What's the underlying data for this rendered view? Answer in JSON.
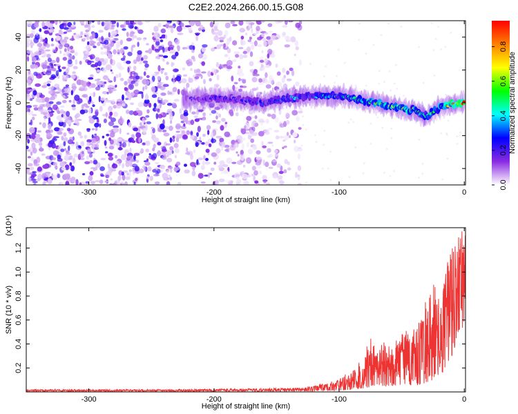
{
  "chart_data": [
    {
      "type": "heatmap",
      "title": "C2E2.2024.266.00.15.G08",
      "xlabel": "Height of straight line (km)",
      "ylabel": "Frequency (Hz)",
      "xlim": [
        -350,
        1
      ],
      "ylim": [
        -50,
        50
      ],
      "xticks": [
        -300,
        -200,
        -100,
        0
      ],
      "yticks": [
        -40,
        -20,
        0,
        20,
        40
      ],
      "colorbar": {
        "label": "Normalized spectral amplitude",
        "range": [
          0,
          0.95
        ],
        "ticks": [
          0.0,
          0.2,
          0.4,
          0.6,
          0.8
        ],
        "colormap": [
          "#ffffff",
          "#8a2be2",
          "#0000ff",
          "#00ffff",
          "#00ff00",
          "#ffff00",
          "#ff8000",
          "#ff0000"
        ]
      },
      "ridge": {
        "x": [
          -220,
          -200,
          -180,
          -160,
          -140,
          -120,
          -100,
          -90,
          -80,
          -70,
          -60,
          -50,
          -45,
          -40,
          -35,
          -30,
          -20,
          -10,
          0
        ],
        "y": [
          2,
          3,
          2,
          0,
          3,
          4,
          4,
          3,
          1,
          0,
          -2,
          -3,
          -5,
          -4,
          -7,
          -8,
          -3,
          -1,
          0
        ],
        "amplitude": [
          0.2,
          0.25,
          0.25,
          0.3,
          0.35,
          0.4,
          0.45,
          0.5,
          0.55,
          0.6,
          0.6,
          0.55,
          0.65,
          0.6,
          0.5,
          0.5,
          0.6,
          0.8,
          0.9
        ]
      }
    },
    {
      "type": "line",
      "xlabel": "Height of straight line (km)",
      "ylabel": "SNR (10 * v/v)",
      "y_multiplier": "(x10⁴)",
      "xlim": [
        -350,
        1
      ],
      "ylim": [
        0,
        1.37
      ],
      "xticks": [
        -300,
        -200,
        -100,
        0
      ],
      "yticks": [
        0.2,
        0.4,
        0.6,
        0.8,
        1.0,
        1.2
      ],
      "color": "#ee3333",
      "envelope": {
        "x": [
          -350,
          -300,
          -250,
          -200,
          -150,
          -130,
          -120,
          -110,
          -100,
          -90,
          -80,
          -75,
          -70,
          -65,
          -60,
          -55,
          -50,
          -45,
          -40,
          -35,
          -30,
          -25,
          -20,
          -15,
          -10,
          -5,
          -2,
          0
        ],
        "low": [
          0.005,
          0.005,
          0.005,
          0.005,
          0.005,
          0.005,
          0.005,
          0.01,
          0.01,
          0.02,
          0.03,
          0.04,
          0.05,
          0.05,
          0.04,
          0.05,
          0.05,
          0.06,
          0.05,
          0.06,
          0.08,
          0.1,
          0.12,
          0.2,
          0.3,
          0.45,
          0.5,
          0.6
        ],
        "high": [
          0.02,
          0.02,
          0.02,
          0.025,
          0.03,
          0.035,
          0.05,
          0.08,
          0.1,
          0.2,
          0.3,
          0.48,
          0.35,
          0.42,
          0.4,
          0.42,
          0.5,
          0.55,
          0.52,
          0.6,
          0.8,
          0.9,
          0.85,
          1.0,
          1.27,
          1.3,
          1.35,
          1.34
        ]
      }
    }
  ]
}
